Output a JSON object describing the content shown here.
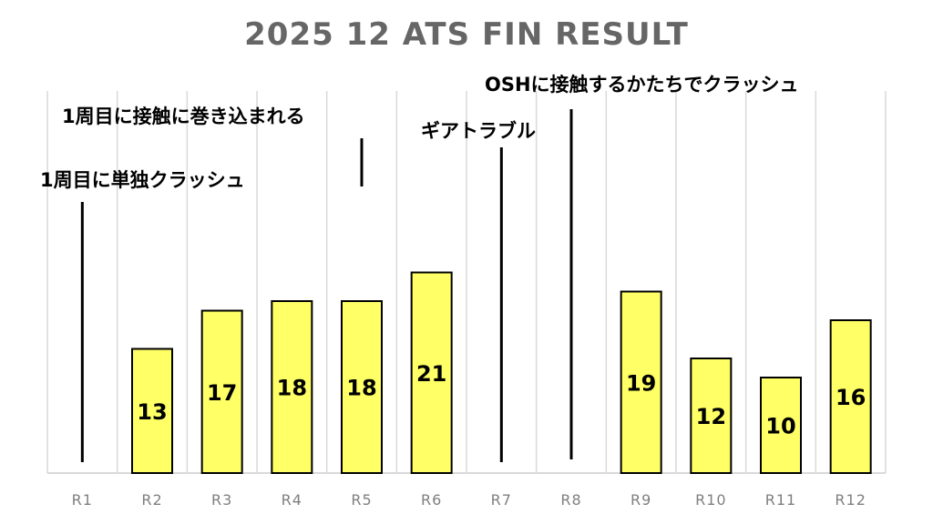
{
  "chart_data": {
    "type": "bar",
    "title": "2025 12 ATS FIN RESULT",
    "xlabel": "",
    "ylabel": "",
    "categories": [
      "R1",
      "R2",
      "R3",
      "R4",
      "R5",
      "R6",
      "R7",
      "R8",
      "R9",
      "R10",
      "R11",
      "R12"
    ],
    "values": [
      null,
      13,
      17,
      18,
      18,
      21,
      null,
      null,
      19,
      12,
      10,
      16
    ],
    "ylim": [
      0,
      30
    ],
    "grid": true,
    "colors": {
      "bar_fill": "#ffff66",
      "bar_stroke": "#000000",
      "grid": "#d9d9d9",
      "tick_label": "#7f7f7f",
      "title": "#666666",
      "annotation": "#000000"
    },
    "annotations": [
      {
        "category": "R1",
        "text": "1周目に単独クラッシュ"
      },
      {
        "category": "R5",
        "text": "1周目に接触に巻き込まれる"
      },
      {
        "category": "R7",
        "text": "ギアトラブル"
      },
      {
        "category": "R8",
        "text": "OSHに接触するかたちでクラッシュ"
      }
    ]
  }
}
